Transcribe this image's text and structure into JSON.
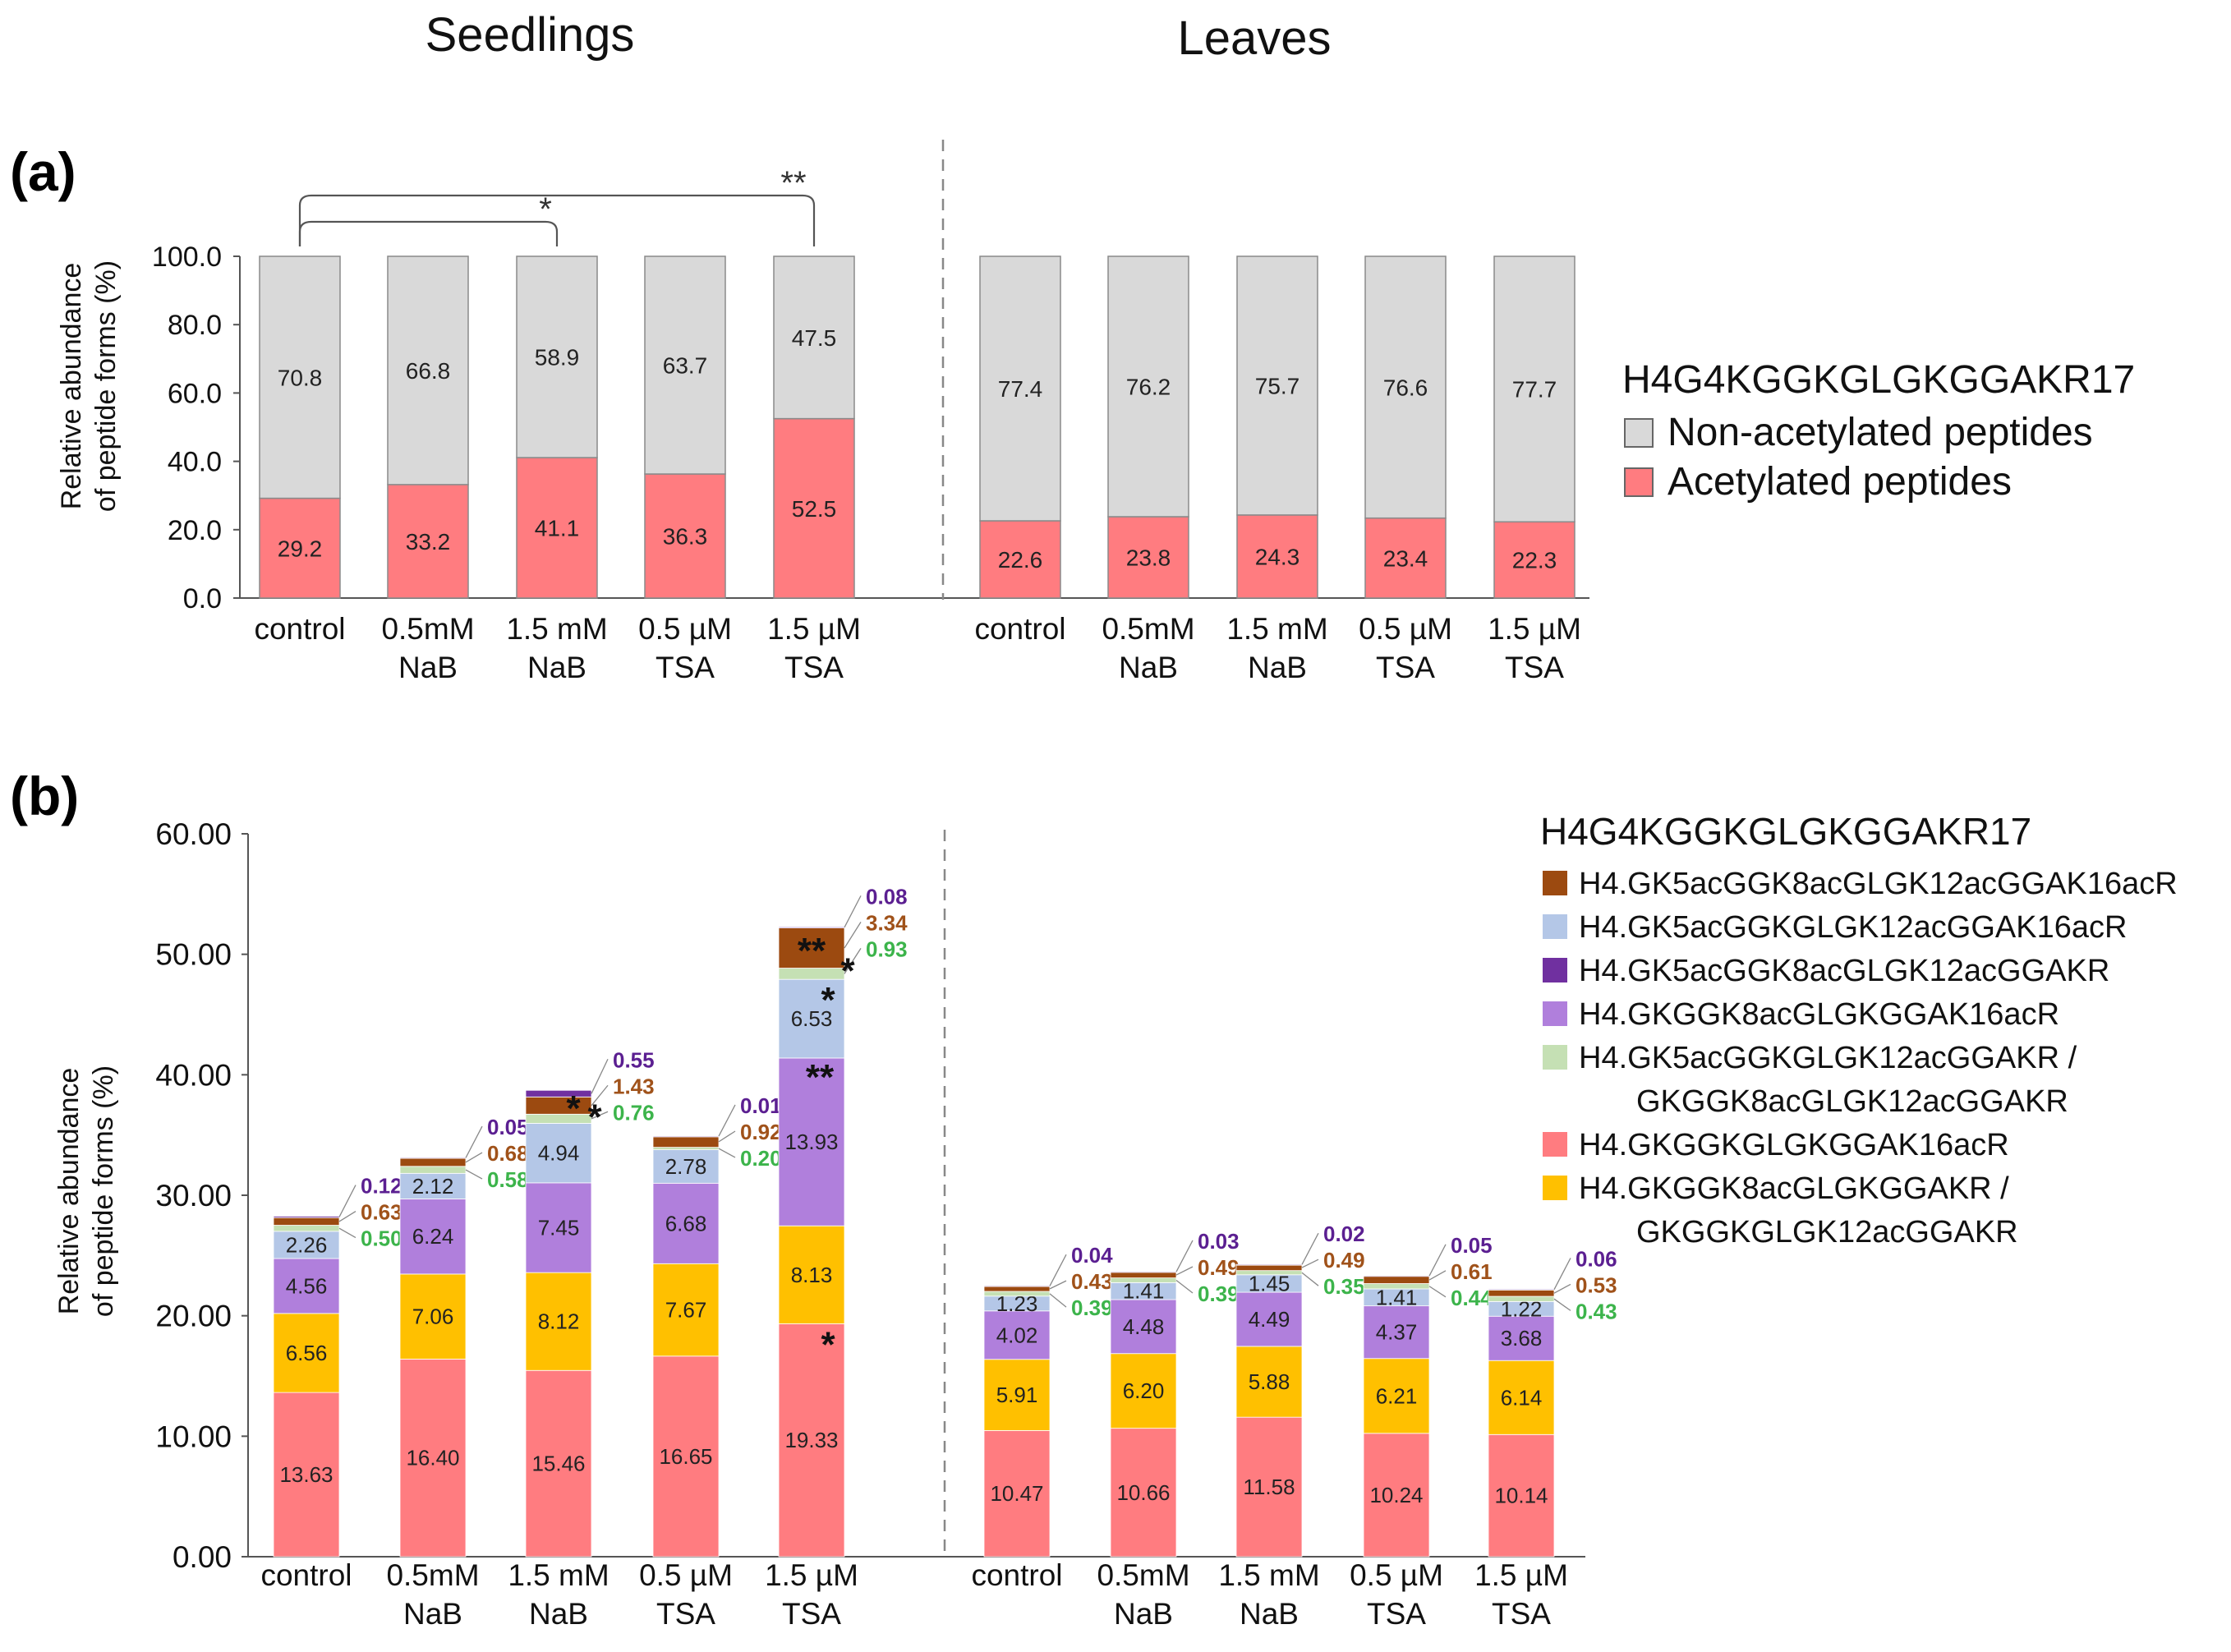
{
  "titles": {
    "seedlings": "Seedlings",
    "leaves": "Leaves",
    "panel_a": "(a)",
    "panel_b": "(b)"
  },
  "colors": {
    "non_acetylated": "#d9d9d9",
    "acetylated_a": "#ff7c80",
    "k5k8k12k16": "#9c4a10",
    "k5k12k16": "#b4c7e7",
    "k5k8k12": "#7030a0",
    "k8k16": "#b07fdc",
    "k5k12_k8k12": "#c5e0b4",
    "k16": "#ff7c80",
    "k8_k12": "#ffc000",
    "label_purple": "#5b1f91",
    "label_brown": "#a0521a",
    "label_green": "#3cb44b"
  },
  "chart_data": [
    {
      "id": "panel_a",
      "type": "bar",
      "stacked": true,
      "ylabel_line1": "Relative abundance",
      "ylabel_line2": "of peptide forms (%)",
      "ylim": [
        0,
        100
      ],
      "yticks": [
        "0.0",
        "20.0",
        "40.0",
        "60.0",
        "80.0",
        "100.0"
      ],
      "groups": [
        "Seedlings",
        "Leaves"
      ],
      "categories": [
        [
          "control",
          ""
        ],
        [
          "0.5mM",
          "NaB"
        ],
        [
          "1.5 mM",
          "NaB"
        ],
        [
          "0.5 µM",
          "TSA"
        ],
        [
          "1.5 µM",
          "TSA"
        ],
        [
          "control",
          ""
        ],
        [
          "0.5mM",
          "NaB"
        ],
        [
          "1.5 mM",
          "NaB"
        ],
        [
          "0.5 µM",
          "TSA"
        ],
        [
          "1.5 µM",
          "TSA"
        ]
      ],
      "legend_title": "H4G4KGGKGLGKGGAKR17",
      "series": [
        {
          "name": "Acetylated peptides",
          "color": "#ff7c80",
          "values": [
            29.2,
            33.2,
            41.1,
            36.3,
            52.5,
            22.6,
            23.8,
            24.3,
            23.4,
            22.3
          ]
        },
        {
          "name": "Non-acetylated peptides",
          "color": "#d9d9d9",
          "values": [
            70.8,
            66.8,
            58.9,
            63.7,
            47.5,
            77.4,
            76.2,
            75.7,
            76.6,
            77.7
          ]
        }
      ],
      "significance": [
        {
          "from": 0,
          "to": 2,
          "label": "*"
        },
        {
          "from": 0,
          "to": 4,
          "label": "**"
        }
      ]
    },
    {
      "id": "panel_b",
      "type": "bar",
      "stacked": true,
      "ylabel_line1": "Relative abundance",
      "ylabel_line2": "of peptide forms (%)",
      "ylim": [
        0,
        60
      ],
      "yticks": [
        "0.00",
        "10.00",
        "20.00",
        "30.00",
        "40.00",
        "50.00",
        "60.00"
      ],
      "groups": [
        "Seedlings",
        "Leaves"
      ],
      "categories": [
        [
          "control",
          ""
        ],
        [
          "0.5mM",
          "NaB"
        ],
        [
          "1.5 mM",
          "NaB"
        ],
        [
          "0.5 µM",
          "TSA"
        ],
        [
          "1.5 µM",
          "TSA"
        ],
        [
          "control",
          ""
        ],
        [
          "0.5mM",
          "NaB"
        ],
        [
          "1.5 mM",
          "NaB"
        ],
        [
          "0.5 µM",
          "TSA"
        ],
        [
          "1.5 µM",
          "TSA"
        ]
      ],
      "legend_title": "H4G4KGGKGLGKGGAKR17",
      "legend": [
        {
          "key": "k5k8k12k16",
          "lines": [
            "H4.GK5acGGK8acGLGK12acGGAK16acR"
          ]
        },
        {
          "key": "k5k12k16",
          "lines": [
            "H4.GK5acGGKGLGK12acGGAK16acR"
          ]
        },
        {
          "key": "k5k8k12",
          "lines": [
            "H4.GK5acGGK8acGLGK12acGGAKR"
          ]
        },
        {
          "key": "k8k16",
          "lines": [
            "H4.GKGGK8acGLGKGGAK16acR"
          ]
        },
        {
          "key": "k5k12_k8k12",
          "lines": [
            "H4.GK5acGGKGLGK12acGGAKR /",
            "GKGGK8acGLGK12acGGAKR"
          ]
        },
        {
          "key": "k16",
          "lines": [
            "H4.GKGGKGLGKGGAK16acR"
          ]
        },
        {
          "key": "k8_k12",
          "lines": [
            "H4.GKGGK8acGLGKGGAKR /",
            "GKGGKGLGK12acGGAKR"
          ]
        }
      ],
      "series": [
        {
          "key": "k16",
          "name": "H4.GKGGKGLGKGGAK16acR",
          "values": [
            13.63,
            16.4,
            15.46,
            16.65,
            19.33,
            10.47,
            10.66,
            11.58,
            10.24,
            10.14
          ],
          "labels": [
            "13.63",
            "16.40",
            "15.46",
            "16.65",
            "19.33",
            "10.47",
            "10.66",
            "11.58",
            "10.24",
            "10.14"
          ]
        },
        {
          "key": "k8_k12",
          "name": "H4.GKGGK8acGLGKGGAKR / GKGGKGLGK12acGGAKR",
          "values": [
            6.56,
            7.06,
            8.12,
            7.67,
            8.13,
            5.91,
            6.2,
            5.88,
            6.21,
            6.14
          ],
          "labels": [
            "6.56",
            "7.06",
            "8.12",
            "7.67",
            "8.13",
            "5.91",
            "6.20",
            "5.88",
            "6.21",
            "6.14"
          ]
        },
        {
          "key": "k8k16",
          "name": "H4.GKGGK8acGLGKGGAK16acR",
          "values": [
            4.56,
            6.24,
            7.45,
            6.68,
            13.93,
            4.02,
            4.48,
            4.49,
            4.37,
            3.68
          ],
          "labels": [
            "4.56",
            "6.24",
            "7.45",
            "6.68",
            "13.93",
            "4.02",
            "4.48",
            "4.49",
            "4.37",
            "3.68"
          ]
        },
        {
          "key": "k5k12k16",
          "name": "H4.GK5acGGKGLGK12acGGAK16acR",
          "values": [
            2.26,
            2.12,
            4.94,
            2.78,
            6.53,
            1.23,
            1.41,
            1.45,
            1.41,
            1.22
          ],
          "labels": [
            "2.26",
            "2.12",
            "4.94",
            "2.78",
            "6.53",
            "1.23",
            "1.41",
            "1.45",
            "1.41",
            "1.22"
          ]
        },
        {
          "key": "k5k12_k8k12",
          "name": "H4.GK5acGGKGLGK12acGGAKR / GKGGK8acGLGK12acGGAKR",
          "values": [
            0.5,
            0.58,
            0.76,
            0.2,
            0.93,
            0.39,
            0.39,
            0.35,
            0.44,
            0.43
          ],
          "labels": [
            "0.50",
            "0.58",
            "0.76",
            "0.20",
            "0.93",
            "0.39",
            "0.39",
            "0.35",
            "0.44",
            "0.43"
          ]
        },
        {
          "key": "k5k8k12k16",
          "name": "H4.GK5acGGK8acGLGK12acGGAK16acR",
          "values": [
            0.63,
            0.68,
            1.43,
            0.92,
            3.34,
            0.43,
            0.49,
            0.49,
            0.61,
            0.53
          ],
          "labels": [
            "0.63",
            "0.68",
            "1.43",
            "0.92",
            "3.34",
            "0.43",
            "0.49",
            "0.49",
            "0.61",
            "0.53"
          ]
        },
        {
          "key": "k5k8k12",
          "name": "H4.GK5acGGK8acGLGK12acGGAKR",
          "values": [
            0.12,
            0.05,
            0.55,
            0.01,
            0.08,
            0.04,
            0.03,
            0.02,
            0.05,
            0.06
          ],
          "labels": [
            "0.12",
            "0.05",
            "0.55",
            "0.01",
            "0.08",
            "0.04",
            "0.03",
            "0.02",
            "0.05",
            "0.06"
          ]
        }
      ],
      "stars": [
        {
          "bar": 2,
          "series": "k5k8k12k16",
          "label": "*"
        },
        {
          "bar": 2,
          "series": "k5k12_k8k12",
          "label": "*"
        },
        {
          "bar": 4,
          "series": "k16",
          "label": "*"
        },
        {
          "bar": 4,
          "series": "k8k16",
          "label": "**"
        },
        {
          "bar": 4,
          "series": "k5k12k16",
          "label": "*"
        },
        {
          "bar": 4,
          "series": "k5k12_k8k12",
          "label": "*"
        },
        {
          "bar": 4,
          "series": "k5k8k12k16",
          "label": "**"
        }
      ]
    }
  ]
}
